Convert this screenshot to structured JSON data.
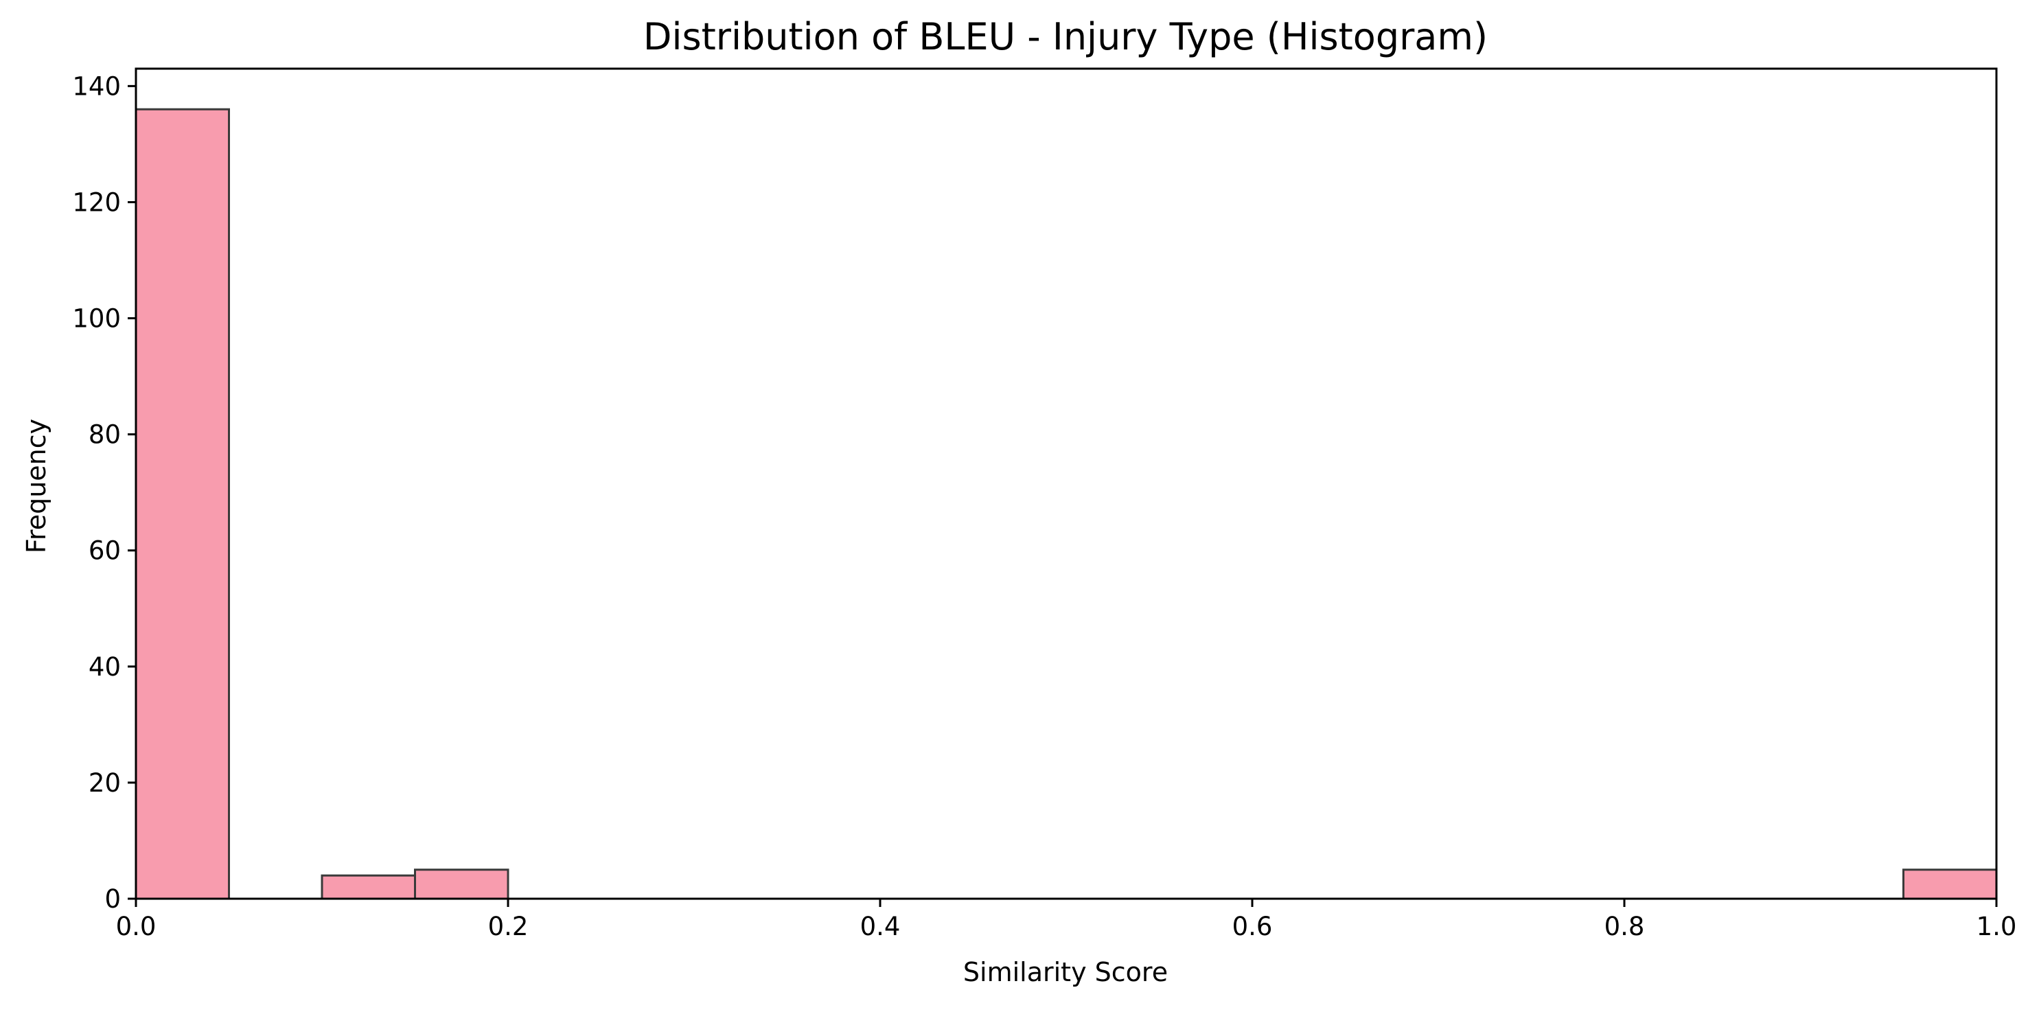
{
  "chart_data": {
    "type": "bar",
    "title": "Distribution of BLEU - Injury Type (Histogram)",
    "xlabel": "Similarity Score",
    "ylabel": "Frequency",
    "xlim": [
      0.0,
      1.0
    ],
    "ylim": [
      0,
      143
    ],
    "bin_edges": [
      0.0,
      0.05,
      0.1,
      0.15,
      0.2,
      0.25,
      0.3,
      0.35,
      0.4,
      0.45,
      0.5,
      0.55,
      0.6,
      0.65,
      0.7,
      0.75,
      0.8,
      0.85,
      0.9,
      0.95,
      1.0
    ],
    "values": [
      136,
      0,
      4,
      5,
      0,
      0,
      0,
      0,
      0,
      0,
      0,
      0,
      0,
      0,
      0,
      0,
      0,
      0,
      0,
      5
    ],
    "x_ticks": [
      {
        "value": 0.0,
        "label": "0.0"
      },
      {
        "value": 0.2,
        "label": "0.2"
      },
      {
        "value": 0.4,
        "label": "0.4"
      },
      {
        "value": 0.6,
        "label": "0.6"
      },
      {
        "value": 0.8,
        "label": "0.8"
      },
      {
        "value": 1.0,
        "label": "1.0"
      }
    ],
    "y_ticks": [
      {
        "value": 0,
        "label": "0"
      },
      {
        "value": 20,
        "label": "20"
      },
      {
        "value": 40,
        "label": "40"
      },
      {
        "value": 60,
        "label": "60"
      },
      {
        "value": 80,
        "label": "80"
      },
      {
        "value": 100,
        "label": "100"
      },
      {
        "value": 120,
        "label": "120"
      },
      {
        "value": 140,
        "label": "140"
      }
    ],
    "grid": false,
    "legend": "none",
    "colors": {
      "bar_fill": "#f89cae",
      "bar_edge": "#3a3a3a",
      "axes": "#000000"
    }
  }
}
